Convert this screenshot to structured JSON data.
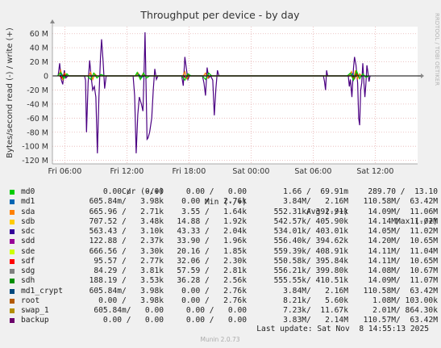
{
  "chart_data": {
    "type": "line",
    "title": "Throughput per device - by day",
    "ylabel": "Bytes/second read (-) / write (+)",
    "side_label": "RRDTOOL / TOBI OETIKER",
    "footer": "Munin 2.0.73",
    "y_ticks": [
      "60 M",
      "40 M",
      "20 M",
      "0",
      "-20 M",
      "-40 M",
      "-60 M",
      "-80 M",
      "-100 M",
      "-120 M"
    ],
    "y_tick_values": [
      60,
      40,
      20,
      0,
      -20,
      -40,
      -60,
      -80,
      -100,
      -120
    ],
    "ylim": [
      -125,
      70
    ],
    "x_ticks": [
      "Fri 06:00",
      "Fri 12:00",
      "Fri 18:00",
      "Sat 00:00",
      "Sat 06:00",
      "Sat 12:00"
    ],
    "x_tick_hours": [
      6,
      12,
      18,
      24,
      30,
      36
    ],
    "xlim_hours": [
      4.8,
      40.1
    ],
    "grid": true,
    "series": [
      {
        "name": "backup",
        "color": "#4b0082",
        "points": [
          [
            5.35,
            0
          ],
          [
            5.5,
            18
          ],
          [
            5.65,
            -5
          ],
          [
            5.8,
            -12
          ],
          [
            5.95,
            8
          ],
          [
            6.1,
            -3
          ],
          [
            6.3,
            0
          ],
          [
            7.9,
            0
          ],
          [
            8.0,
            -6
          ],
          [
            8.1,
            -80
          ],
          [
            8.25,
            -10
          ],
          [
            8.4,
            22
          ],
          [
            8.55,
            -2
          ],
          [
            8.7,
            -20
          ],
          [
            8.85,
            -15
          ],
          [
            9.0,
            -30
          ],
          [
            9.15,
            -110
          ],
          [
            9.3,
            -30
          ],
          [
            9.45,
            28
          ],
          [
            9.55,
            52
          ],
          [
            9.7,
            20
          ],
          [
            9.85,
            -18
          ],
          [
            10.0,
            0
          ],
          [
            12.6,
            0
          ],
          [
            12.75,
            -28
          ],
          [
            12.9,
            -110
          ],
          [
            13.05,
            -55
          ],
          [
            13.2,
            -30
          ],
          [
            13.4,
            -40
          ],
          [
            13.55,
            -50
          ],
          [
            13.65,
            0
          ],
          [
            13.75,
            62
          ],
          [
            13.85,
            -10
          ],
          [
            13.95,
            -90
          ],
          [
            14.05,
            -88
          ],
          [
            14.2,
            -80
          ],
          [
            14.4,
            -60
          ],
          [
            14.55,
            -20
          ],
          [
            14.7,
            10
          ],
          [
            14.85,
            -5
          ],
          [
            15.0,
            0
          ],
          [
            17.3,
            0
          ],
          [
            17.45,
            -14
          ],
          [
            17.6,
            27
          ],
          [
            17.75,
            10
          ],
          [
            17.9,
            -5
          ],
          [
            18.05,
            0
          ],
          [
            19.3,
            0
          ],
          [
            19.45,
            -10
          ],
          [
            19.6,
            -28
          ],
          [
            19.75,
            12
          ],
          [
            19.9,
            -3
          ],
          [
            20.1,
            0
          ],
          [
            20.3,
            -6
          ],
          [
            20.45,
            -56
          ],
          [
            20.6,
            -18
          ],
          [
            20.75,
            8
          ],
          [
            20.9,
            0
          ],
          [
            31.0,
            0
          ],
          [
            31.1,
            -8
          ],
          [
            31.2,
            -20
          ],
          [
            31.3,
            8
          ],
          [
            31.4,
            0
          ],
          [
            33.4,
            0
          ],
          [
            33.5,
            -15
          ],
          [
            33.6,
            -5
          ],
          [
            33.75,
            -30
          ],
          [
            33.9,
            10
          ],
          [
            34.0,
            27
          ],
          [
            34.15,
            15
          ],
          [
            34.3,
            -10
          ],
          [
            34.4,
            -60
          ],
          [
            34.5,
            -70
          ],
          [
            34.6,
            -20
          ],
          [
            34.7,
            -10
          ],
          [
            34.8,
            18
          ],
          [
            34.9,
            -8
          ],
          [
            35.0,
            -30
          ],
          [
            35.1,
            -12
          ],
          [
            35.2,
            15
          ],
          [
            35.3,
            5
          ],
          [
            35.4,
            -8
          ],
          [
            35.5,
            0
          ]
        ]
      },
      {
        "name": "sdb",
        "color": "#f57900",
        "points": [
          [
            5.4,
            0
          ],
          [
            5.6,
            8
          ],
          [
            5.8,
            -6
          ],
          [
            6.0,
            4
          ],
          [
            6.2,
            0
          ],
          [
            8.3,
            0
          ],
          [
            8.5,
            5
          ],
          [
            8.7,
            -5
          ],
          [
            8.9,
            3
          ],
          [
            9.1,
            0
          ],
          [
            12.9,
            0
          ],
          [
            13.1,
            4
          ],
          [
            13.3,
            -4
          ],
          [
            13.5,
            2
          ],
          [
            13.7,
            0
          ],
          [
            17.4,
            0
          ],
          [
            17.6,
            6
          ],
          [
            17.8,
            -4
          ],
          [
            18.0,
            0
          ],
          [
            19.4,
            0
          ],
          [
            19.6,
            4
          ],
          [
            19.8,
            -3
          ],
          [
            20.0,
            0
          ],
          [
            33.5,
            0
          ],
          [
            33.7,
            6
          ],
          [
            33.9,
            -5
          ],
          [
            34.1,
            8
          ],
          [
            34.3,
            -4
          ],
          [
            34.5,
            3
          ],
          [
            34.7,
            0
          ]
        ]
      },
      {
        "name": "sda",
        "color": "#0066b3",
        "points": [
          [
            5.5,
            0
          ],
          [
            5.7,
            3
          ],
          [
            5.9,
            -2
          ],
          [
            6.1,
            0
          ],
          [
            13.0,
            0
          ],
          [
            13.2,
            2
          ],
          [
            13.4,
            -3
          ],
          [
            13.6,
            0
          ],
          [
            33.6,
            0
          ],
          [
            33.8,
            3
          ],
          [
            34.0,
            -2
          ],
          [
            34.2,
            0
          ]
        ]
      },
      {
        "name": "sdd",
        "color": "#cc0000",
        "points": [
          [
            5.5,
            0
          ],
          [
            5.7,
            -3
          ],
          [
            5.9,
            2
          ],
          [
            6.1,
            0
          ],
          [
            17.5,
            0
          ],
          [
            17.7,
            -3
          ],
          [
            17.9,
            2
          ],
          [
            18.1,
            0
          ],
          [
            33.8,
            0
          ],
          [
            34.0,
            -4
          ],
          [
            34.2,
            3
          ],
          [
            34.4,
            0
          ]
        ]
      },
      {
        "name": "sdg",
        "color": "#00cc00",
        "points": [
          [
            5.3,
            0
          ],
          [
            5.6,
            5
          ],
          [
            5.9,
            -4
          ],
          [
            6.2,
            3
          ],
          [
            6.4,
            0
          ],
          [
            8.2,
            0
          ],
          [
            8.5,
            -5
          ],
          [
            8.8,
            4
          ],
          [
            9.1,
            -3
          ],
          [
            9.5,
            2
          ],
          [
            9.9,
            0
          ],
          [
            12.8,
            0
          ],
          [
            13.0,
            5
          ],
          [
            13.3,
            -5
          ],
          [
            13.6,
            4
          ],
          [
            13.9,
            -3
          ],
          [
            14.2,
            0
          ],
          [
            17.3,
            0
          ],
          [
            17.6,
            -6
          ],
          [
            17.9,
            3
          ],
          [
            18.2,
            0
          ],
          [
            19.3,
            0
          ],
          [
            19.6,
            -5
          ],
          [
            19.9,
            4
          ],
          [
            20.2,
            0
          ],
          [
            33.3,
            0
          ],
          [
            33.6,
            4
          ],
          [
            33.9,
            -6
          ],
          [
            34.2,
            7
          ],
          [
            34.5,
            -4
          ],
          [
            34.8,
            3
          ],
          [
            35.1,
            -2
          ],
          [
            35.4,
            0
          ]
        ]
      }
    ]
  },
  "legend": {
    "headers": {
      "cur": "Cur (-/+)",
      "min": "Min (-/+)",
      "avg": "Avg (-/+)",
      "max": "Max (-/+)"
    },
    "rows": [
      {
        "name": "md0",
        "color": "#00cc00",
        "cur": "0.00 /   0.00",
        "min": "0.00 /   0.00",
        "avg": "1.66 /  69.91m",
        "max": "289.70 /  13.10"
      },
      {
        "name": "md1",
        "color": "#0066b3",
        "cur": "605.84m/   3.98k",
        "min": "0.00 /   2.76k",
        "avg": "3.84M/   2.16M",
        "max": "110.58M/  63.42M"
      },
      {
        "name": "sda",
        "color": "#ff8000",
        "cur": "665.96 /   2.71k",
        "min": "3.55 /   1.64k",
        "avg": "552.31k/ 392.91k",
        "max": "14.09M/  11.06M"
      },
      {
        "name": "sdb",
        "color": "#ffcc00",
        "cur": "707.52 /   3.48k",
        "min": "14.88 /   1.92k",
        "avg": "542.57k/ 405.90k",
        "max": "14.14M/  11.02M"
      },
      {
        "name": "sdc",
        "color": "#330099",
        "cur": "563.43 /   3.10k",
        "min": "43.33 /   2.04k",
        "avg": "534.01k/ 403.01k",
        "max": "14.05M/  11.02M"
      },
      {
        "name": "sdd",
        "color": "#990099",
        "cur": "122.88 /   2.37k",
        "min": "33.90 /   1.96k",
        "avg": "556.40k/ 394.62k",
        "max": "14.20M/  10.65M"
      },
      {
        "name": "sde",
        "color": "#ccff00",
        "cur": "666.56 /   3.30k",
        "min": "20.16 /   1.85k",
        "avg": "559.39k/ 408.91k",
        "max": "14.11M/  11.04M"
      },
      {
        "name": "sdf",
        "color": "#ff0000",
        "cur": "95.57 /   2.77k",
        "min": "32.06 /   2.30k",
        "avg": "550.58k/ 395.84k",
        "max": "14.11M/  10.65M"
      },
      {
        "name": "sdg",
        "color": "#808080",
        "cur": "84.29 /   3.81k",
        "min": "57.59 /   2.81k",
        "avg": "556.21k/ 399.80k",
        "max": "14.08M/  10.67M"
      },
      {
        "name": "sdh",
        "color": "#008f00",
        "cur": "188.19 /   3.53k",
        "min": "36.28 /   2.56k",
        "avg": "555.55k/ 410.51k",
        "max": "14.09M/  11.07M"
      },
      {
        "name": "md1_crypt",
        "color": "#00487d",
        "cur": "605.84m/   3.98k",
        "min": "0.00 /   2.76k",
        "avg": "3.84M/   2.16M",
        "max": "110.58M/  63.42M"
      },
      {
        "name": "root",
        "color": "#b35a00",
        "cur": "0.00 /   3.98k",
        "min": "0.00 /   2.76k",
        "avg": "8.21k/   5.60k",
        "max": "1.08M/ 103.00k"
      },
      {
        "name": "swap_1",
        "color": "#b38f00",
        "cur": "605.84m/   0.00",
        "min": "0.00 /   0.00",
        "avg": "7.23k/  11.67k",
        "max": "2.01M/ 864.30k"
      },
      {
        "name": "backup",
        "color": "#6b006b",
        "cur": "0.00 /   0.00",
        "min": "0.00 /   0.00",
        "avg": "3.83M/   2.14M",
        "max": "110.57M/  63.42M"
      }
    ]
  },
  "last_update": "Last update: Sat Nov  8 14:55:13 2025"
}
